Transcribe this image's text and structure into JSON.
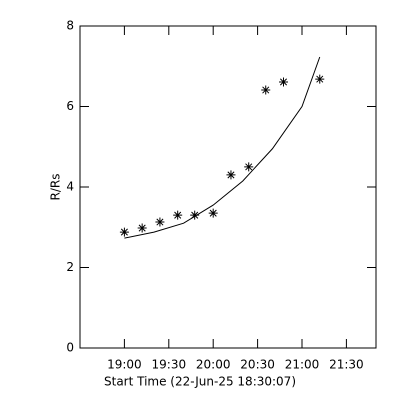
{
  "chart_data": {
    "type": "scatter",
    "xlabel": "Start Time (22-Jun-25 18:30:07)",
    "ylabel": "R/Rs",
    "xlim": [
      1110,
      1310
    ],
    "xticks": [
      {
        "value": 1140,
        "label": "19:00"
      },
      {
        "value": 1170,
        "label": "19:30"
      },
      {
        "value": 1200,
        "label": "20:00"
      },
      {
        "value": 1230,
        "label": "20:30"
      },
      {
        "value": 1260,
        "label": "21:00"
      },
      {
        "value": 1290,
        "label": "21:30"
      }
    ],
    "ylim": [
      0,
      8
    ],
    "yticks": [
      0,
      2,
      4,
      6,
      8
    ],
    "series": [
      {
        "kind": "markers",
        "marker": "asterisk",
        "color": "#000000",
        "x": [
          1140,
          1152,
          1164,
          1176,
          1187.5,
          1200,
          1212,
          1224,
          1235.5,
          1247.5,
          1272
        ],
        "values": [
          2.88,
          2.98,
          3.13,
          3.3,
          3.3,
          3.35,
          4.3,
          4.5,
          6.41,
          6.61,
          6.68
        ]
      },
      {
        "kind": "line",
        "color": "#000000",
        "x": [
          1140,
          1160,
          1180,
          1200,
          1220,
          1240,
          1260,
          1272
        ],
        "values": [
          2.73,
          2.88,
          3.1,
          3.55,
          4.15,
          4.95,
          6.0,
          7.23
        ]
      }
    ]
  }
}
